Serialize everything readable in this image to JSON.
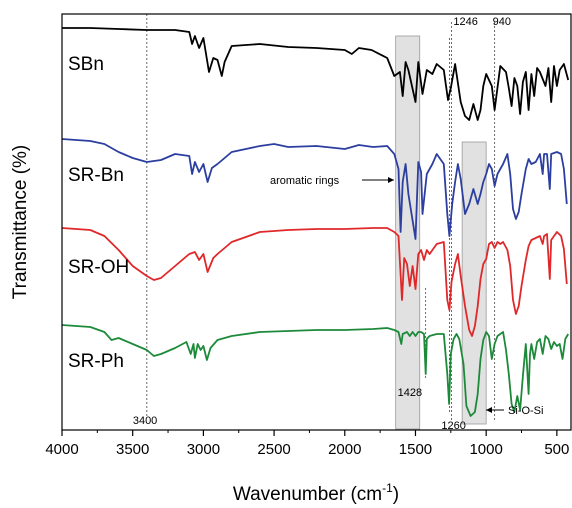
{
  "chart_data": {
    "type": "line",
    "xlabel": "Wavenumber (cm",
    "xlabel_sup": "-1",
    "xlabel_close": ")",
    "ylabel": "Transmittance (%)",
    "xlim": [
      4000,
      400
    ],
    "x_reversed": true,
    "x_ticks": [
      4000,
      3500,
      3000,
      2500,
      2000,
      1500,
      1000,
      500
    ],
    "grid": false,
    "series": [
      {
        "name": "SBn",
        "color": "#000000",
        "offset": 0,
        "points": [
          [
            4000,
            14
          ],
          [
            3800,
            14
          ],
          [
            3600,
            15
          ],
          [
            3400,
            16
          ],
          [
            3200,
            16
          ],
          [
            3100,
            18
          ],
          [
            3080,
            30
          ],
          [
            3060,
            22
          ],
          [
            3030,
            34
          ],
          [
            3000,
            24
          ],
          [
            2960,
            58
          ],
          [
            2930,
            44
          ],
          [
            2900,
            46
          ],
          [
            2870,
            62
          ],
          [
            2850,
            48
          ],
          [
            2800,
            32
          ],
          [
            2600,
            30
          ],
          [
            2400,
            33
          ],
          [
            2200,
            34
          ],
          [
            2000,
            36
          ],
          [
            1950,
            40
          ],
          [
            1900,
            34
          ],
          [
            1810,
            36
          ],
          [
            1700,
            44
          ],
          [
            1650,
            62
          ],
          [
            1610,
            58
          ],
          [
            1590,
            82
          ],
          [
            1570,
            48
          ],
          [
            1550,
            56
          ],
          [
            1500,
            88
          ],
          [
            1480,
            48
          ],
          [
            1450,
            80
          ],
          [
            1420,
            56
          ],
          [
            1380,
            60
          ],
          [
            1350,
            50
          ],
          [
            1300,
            56
          ],
          [
            1270,
            86
          ],
          [
            1250,
            74
          ],
          [
            1220,
            50
          ],
          [
            1180,
            88
          ],
          [
            1150,
            102
          ],
          [
            1120,
            106
          ],
          [
            1090,
            90
          ],
          [
            1060,
            106
          ],
          [
            1040,
            96
          ],
          [
            1020,
            72
          ],
          [
            1000,
            60
          ],
          [
            960,
            72
          ],
          [
            940,
            96
          ],
          [
            900,
            52
          ],
          [
            860,
            58
          ],
          [
            840,
            74
          ],
          [
            820,
            92
          ],
          [
            800,
            64
          ],
          [
            780,
            72
          ],
          [
            760,
            100
          ],
          [
            740,
            68
          ],
          [
            720,
            58
          ],
          [
            700,
            96
          ],
          [
            680,
            60
          ],
          [
            660,
            82
          ],
          [
            640,
            54
          ],
          [
            620,
            58
          ],
          [
            580,
            72
          ],
          [
            560,
            54
          ],
          [
            540,
            88
          ],
          [
            520,
            52
          ],
          [
            500,
            72
          ],
          [
            480,
            56
          ],
          [
            450,
            50
          ],
          [
            420,
            66
          ]
        ]
      },
      {
        "name": "SR-Bn",
        "color": "#2c3fa0",
        "offset": 110,
        "points": [
          [
            4000,
            125
          ],
          [
            3800,
            127
          ],
          [
            3700,
            130
          ],
          [
            3600,
            138
          ],
          [
            3500,
            144
          ],
          [
            3400,
            148
          ],
          [
            3300,
            146
          ],
          [
            3200,
            140
          ],
          [
            3100,
            142
          ],
          [
            3080,
            160
          ],
          [
            3060,
            148
          ],
          [
            3030,
            158
          ],
          [
            3000,
            150
          ],
          [
            2970,
            168
          ],
          [
            2940,
            154
          ],
          [
            2900,
            150
          ],
          [
            2800,
            138
          ],
          [
            2600,
            132
          ],
          [
            2500,
            130
          ],
          [
            2400,
            133
          ],
          [
            2200,
            132
          ],
          [
            2000,
            135
          ],
          [
            1900,
            131
          ],
          [
            1800,
            133
          ],
          [
            1700,
            132
          ],
          [
            1650,
            140
          ],
          [
            1620,
            155
          ],
          [
            1605,
            218
          ],
          [
            1590,
            168
          ],
          [
            1570,
            150
          ],
          [
            1550,
            180
          ],
          [
            1500,
            225
          ],
          [
            1480,
            148
          ],
          [
            1460,
            158
          ],
          [
            1450,
            200
          ],
          [
            1420,
            160
          ],
          [
            1380,
            150
          ],
          [
            1350,
            140
          ],
          [
            1300,
            150
          ],
          [
            1275,
            200
          ],
          [
            1260,
            222
          ],
          [
            1240,
            190
          ],
          [
            1220,
            168
          ],
          [
            1200,
            150
          ],
          [
            1180,
            165
          ],
          [
            1150,
            200
          ],
          [
            1120,
            190
          ],
          [
            1090,
            175
          ],
          [
            1060,
            190
          ],
          [
            1040,
            180
          ],
          [
            1020,
            168
          ],
          [
            1000,
            160
          ],
          [
            980,
            150
          ],
          [
            960,
            155
          ],
          [
            940,
            172
          ],
          [
            920,
            160
          ],
          [
            900,
            155
          ],
          [
            880,
            150
          ],
          [
            850,
            140
          ],
          [
            830,
            160
          ],
          [
            810,
            195
          ],
          [
            790,
            205
          ],
          [
            770,
            198
          ],
          [
            750,
            180
          ],
          [
            720,
            155
          ],
          [
            700,
            145
          ],
          [
            680,
            150
          ],
          [
            650,
            148
          ],
          [
            620,
            140
          ],
          [
            600,
            160
          ],
          [
            590,
            140
          ],
          [
            570,
            140
          ],
          [
            550,
            175
          ],
          [
            540,
            140
          ],
          [
            500,
            138
          ],
          [
            470,
            140
          ],
          [
            450,
            155
          ],
          [
            430,
            190
          ]
        ]
      },
      {
        "name": "SR-OH",
        "color": "#e0282a",
        "offset": 220,
        "points": [
          [
            4000,
            214
          ],
          [
            3800,
            216
          ],
          [
            3700,
            222
          ],
          [
            3600,
            236
          ],
          [
            3500,
            252
          ],
          [
            3400,
            262
          ],
          [
            3350,
            266
          ],
          [
            3300,
            264
          ],
          [
            3200,
            252
          ],
          [
            3100,
            240
          ],
          [
            3060,
            238
          ],
          [
            3030,
            246
          ],
          [
            3000,
            240
          ],
          [
            2970,
            258
          ],
          [
            2930,
            244
          ],
          [
            2900,
            240
          ],
          [
            2850,
            234
          ],
          [
            2800,
            228
          ],
          [
            2600,
            218
          ],
          [
            2400,
            216
          ],
          [
            2200,
            215
          ],
          [
            2000,
            215
          ],
          [
            1800,
            214
          ],
          [
            1700,
            214
          ],
          [
            1650,
            218
          ],
          [
            1620,
            222
          ],
          [
            1595,
            286
          ],
          [
            1580,
            244
          ],
          [
            1560,
            250
          ],
          [
            1540,
            272
          ],
          [
            1520,
            252
          ],
          [
            1500,
            275
          ],
          [
            1480,
            240
          ],
          [
            1460,
            236
          ],
          [
            1440,
            246
          ],
          [
            1420,
            236
          ],
          [
            1400,
            240
          ],
          [
            1350,
            230
          ],
          [
            1300,
            228
          ],
          [
            1275,
            286
          ],
          [
            1260,
            296
          ],
          [
            1245,
            268
          ],
          [
            1220,
            250
          ],
          [
            1200,
            240
          ],
          [
            1180,
            262
          ],
          [
            1150,
            292
          ],
          [
            1120,
            316
          ],
          [
            1100,
            322
          ],
          [
            1080,
            312
          ],
          [
            1060,
            292
          ],
          [
            1040,
            265
          ],
          [
            1020,
            250
          ],
          [
            1000,
            245
          ],
          [
            980,
            230
          ],
          [
            960,
            228
          ],
          [
            940,
            234
          ],
          [
            920,
            228
          ],
          [
            900,
            230
          ],
          [
            880,
            228
          ],
          [
            850,
            236
          ],
          [
            830,
            252
          ],
          [
            810,
            286
          ],
          [
            790,
            300
          ],
          [
            770,
            292
          ],
          [
            750,
            272
          ],
          [
            720,
            246
          ],
          [
            700,
            232
          ],
          [
            680,
            226
          ],
          [
            650,
            224
          ],
          [
            620,
            222
          ],
          [
            600,
            230
          ],
          [
            590,
            222
          ],
          [
            570,
            220
          ],
          [
            550,
            265
          ],
          [
            540,
            226
          ],
          [
            500,
            218
          ],
          [
            470,
            222
          ],
          [
            450,
            235
          ],
          [
            430,
            270
          ]
        ]
      },
      {
        "name": "SR-Ph",
        "color": "#1d8a3a",
        "offset": 330,
        "points": [
          [
            4000,
            311
          ],
          [
            3800,
            313
          ],
          [
            3700,
            318
          ],
          [
            3650,
            326
          ],
          [
            3600,
            324
          ],
          [
            3500,
            330
          ],
          [
            3400,
            336
          ],
          [
            3350,
            342
          ],
          [
            3300,
            340
          ],
          [
            3200,
            334
          ],
          [
            3120,
            328
          ],
          [
            3090,
            340
          ],
          [
            3070,
            330
          ],
          [
            3060,
            344
          ],
          [
            3040,
            330
          ],
          [
            3020,
            336
          ],
          [
            3000,
            332
          ],
          [
            2975,
            346
          ],
          [
            2950,
            334
          ],
          [
            2900,
            326
          ],
          [
            2800,
            322
          ],
          [
            2600,
            318
          ],
          [
            2400,
            317
          ],
          [
            2200,
            316
          ],
          [
            2000,
            316
          ],
          [
            1800,
            315
          ],
          [
            1700,
            314
          ],
          [
            1650,
            316
          ],
          [
            1620,
            318
          ],
          [
            1600,
            330
          ],
          [
            1590,
            320
          ],
          [
            1560,
            318
          ],
          [
            1540,
            322
          ],
          [
            1520,
            318
          ],
          [
            1500,
            322
          ],
          [
            1480,
            318
          ],
          [
            1460,
            318
          ],
          [
            1440,
            320
          ],
          [
            1428,
            360
          ],
          [
            1420,
            325
          ],
          [
            1400,
            322
          ],
          [
            1350,
            320
          ],
          [
            1300,
            320
          ],
          [
            1275,
            360
          ],
          [
            1262,
            390
          ],
          [
            1250,
            340
          ],
          [
            1230,
            325
          ],
          [
            1210,
            320
          ],
          [
            1190,
            325
          ],
          [
            1160,
            350
          ],
          [
            1140,
            392
          ],
          [
            1110,
            402
          ],
          [
            1080,
            398
          ],
          [
            1060,
            380
          ],
          [
            1040,
            345
          ],
          [
            1020,
            326
          ],
          [
            1000,
            318
          ],
          [
            980,
            322
          ],
          [
            960,
            345
          ],
          [
            940,
            330
          ],
          [
            920,
            322
          ],
          [
            900,
            320
          ],
          [
            880,
            318
          ],
          [
            860,
            336
          ],
          [
            840,
            360
          ],
          [
            820,
            390
          ],
          [
            800,
            398
          ],
          [
            780,
            382
          ],
          [
            760,
            396
          ],
          [
            740,
            362
          ],
          [
            720,
            330
          ],
          [
            700,
            380
          ],
          [
            690,
            340
          ],
          [
            680,
            330
          ],
          [
            660,
            345
          ],
          [
            640,
            328
          ],
          [
            620,
            325
          ],
          [
            600,
            340
          ],
          [
            580,
            322
          ],
          [
            560,
            325
          ],
          [
            540,
            335
          ],
          [
            520,
            328
          ],
          [
            500,
            332
          ],
          [
            480,
            330
          ],
          [
            460,
            345
          ],
          [
            440,
            325
          ],
          [
            420,
            320
          ]
        ]
      }
    ],
    "series_labels": [
      "SBn",
      "SR-Bn",
      "SR-OH",
      "SR-Ph"
    ],
    "annotations": {
      "vlines": [
        {
          "x": 3400,
          "label": "3400"
        },
        {
          "x": 1428,
          "label": "1428"
        },
        {
          "x": 1260,
          "label": "1260"
        },
        {
          "x": 1246,
          "label": "1246"
        },
        {
          "x": 940,
          "label": "940"
        }
      ],
      "bands": [
        {
          "from": 1640,
          "to": 1470,
          "label": "aromatic rings"
        },
        {
          "from": 1170,
          "to": 1000,
          "label": "Si-O-Si"
        }
      ]
    }
  }
}
